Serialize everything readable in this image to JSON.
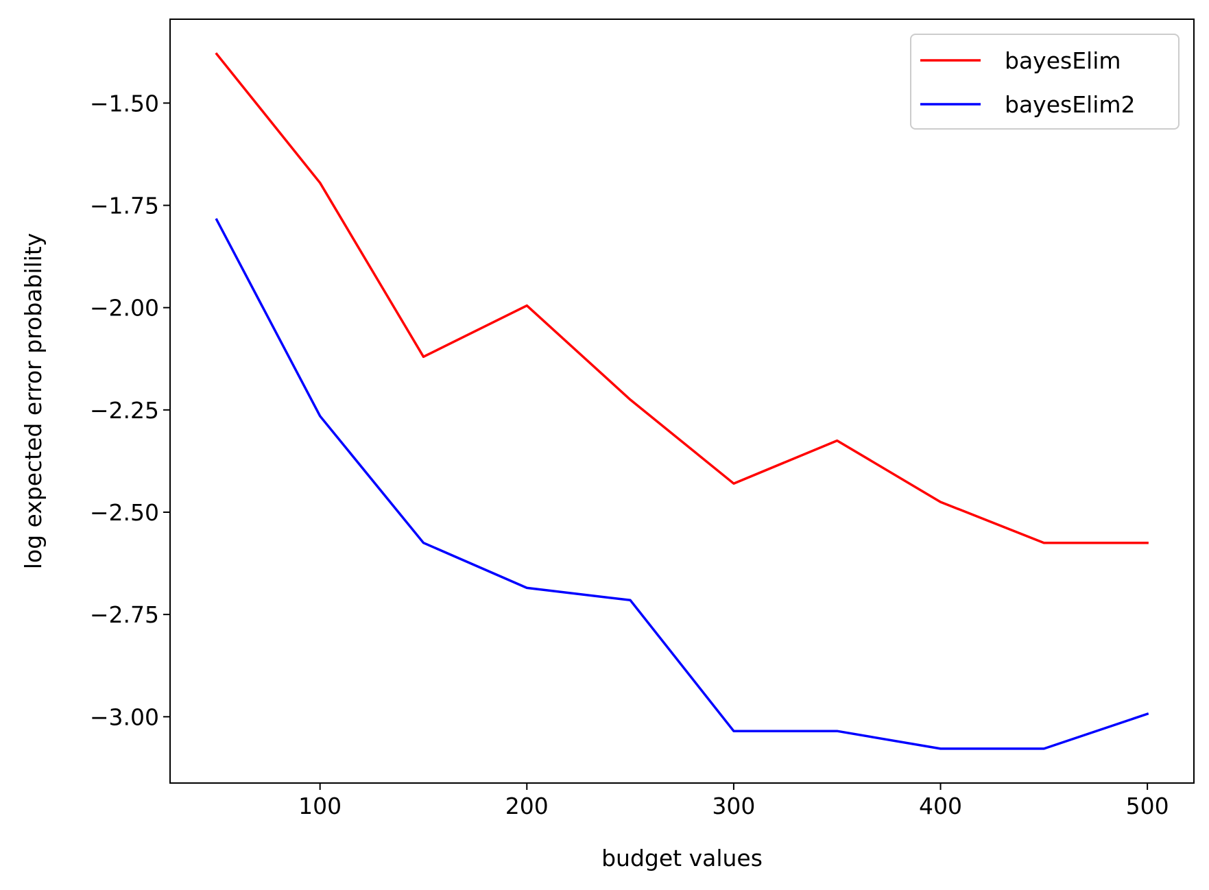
{
  "chart_data": {
    "type": "line",
    "title": "",
    "xlabel": "budget values",
    "ylabel": "log expected error probability",
    "x": [
      50,
      100,
      150,
      200,
      250,
      300,
      350,
      400,
      450,
      500
    ],
    "xlim": [
      27.5,
      522.5
    ],
    "ylim": [
      -3.162,
      -1.295
    ],
    "xticks": [
      100,
      200,
      300,
      400,
      500
    ],
    "xtick_labels": [
      "100",
      "200",
      "300",
      "400",
      "500"
    ],
    "yticks": [
      -1.5,
      -1.75,
      -2.0,
      -2.25,
      -2.5,
      -2.75,
      -3.0
    ],
    "ytick_labels": [
      "−1.50",
      "−1.75",
      "−2.00",
      "−2.25",
      "−2.50",
      "−2.75",
      "−3.00"
    ],
    "grid": false,
    "legend_position": "top-right",
    "series": [
      {
        "name": "bayesElim",
        "color": "#ff0000",
        "values": [
          -1.38,
          -1.695,
          -2.12,
          -1.995,
          -2.225,
          -2.43,
          -2.325,
          -2.475,
          -2.575,
          -2.575
        ]
      },
      {
        "name": "bayesElim2",
        "color": "#0000ff",
        "values": [
          -1.785,
          -2.265,
          -2.575,
          -2.685,
          -2.715,
          -3.035,
          -3.035,
          -3.078,
          -3.078,
          -2.993
        ]
      }
    ]
  }
}
